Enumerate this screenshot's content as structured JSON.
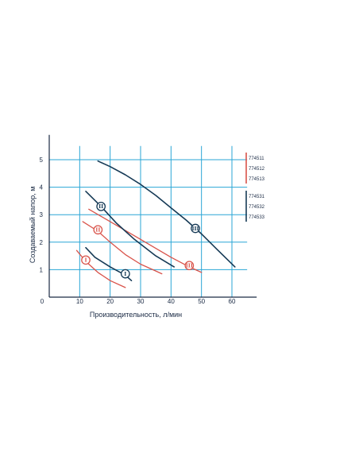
{
  "colors": {
    "grid": "#2aa6d6",
    "axis": "#1a2a44",
    "navy": "#163a56",
    "red": "#d9534a"
  },
  "chart_data": {
    "type": "line",
    "xlabel": "Производительность, л/мин",
    "ylabel": "Создаваемый напор, м",
    "xlim": [
      0,
      65
    ],
    "ylim": [
      0,
      5.5
    ],
    "x_ticks": [
      0,
      10,
      20,
      30,
      40,
      50,
      60
    ],
    "y_ticks": [
      1,
      2,
      3,
      4,
      5
    ],
    "x_tick_labels": [
      "0",
      "10",
      "20",
      "30",
      "40",
      "50",
      "60"
    ],
    "y_tick_labels": [
      "1",
      "2",
      "3",
      "4",
      "5"
    ],
    "grid": true,
    "legend_position": "right",
    "legend_groups": [
      {
        "color": "red",
        "items": [
          "774511",
          "774512",
          "774513"
        ]
      },
      {
        "color": "navy",
        "items": [
          "774531",
          "774532",
          "774533"
        ]
      }
    ],
    "series": [
      {
        "color": "red",
        "marker": "I",
        "marker_at": [
          12,
          1.35
        ],
        "points": [
          [
            9,
            1.7
          ],
          [
            12,
            1.3
          ],
          [
            16,
            0.9
          ],
          [
            20,
            0.6
          ],
          [
            25,
            0.35
          ]
        ]
      },
      {
        "color": "red",
        "marker": "II",
        "marker_at": [
          16,
          2.45
        ],
        "points": [
          [
            11,
            2.75
          ],
          [
            16,
            2.4
          ],
          [
            20,
            2.0
          ],
          [
            25,
            1.55
          ],
          [
            30,
            1.2
          ],
          [
            35,
            0.95
          ],
          [
            37,
            0.85
          ]
        ]
      },
      {
        "color": "red",
        "marker": "III",
        "marker_at": [
          46,
          1.15
        ],
        "points": [
          [
            13,
            3.2
          ],
          [
            20,
            2.75
          ],
          [
            30,
            2.1
          ],
          [
            40,
            1.45
          ],
          [
            46,
            1.1
          ],
          [
            50,
            0.9
          ]
        ]
      },
      {
        "color": "navy",
        "marker": "I",
        "marker_at": [
          25,
          0.85
        ],
        "points": [
          [
            12,
            1.8
          ],
          [
            15,
            1.45
          ],
          [
            20,
            1.1
          ],
          [
            25,
            0.8
          ],
          [
            27,
            0.6
          ]
        ]
      },
      {
        "color": "navy",
        "marker": "II",
        "marker_at": [
          17,
          3.3
        ],
        "points": [
          [
            12,
            3.85
          ],
          [
            17,
            3.3
          ],
          [
            22,
            2.7
          ],
          [
            28,
            2.1
          ],
          [
            35,
            1.5
          ],
          [
            41,
            1.1
          ]
        ]
      },
      {
        "color": "navy",
        "marker": "III",
        "marker_at": [
          48,
          2.5
        ],
        "points": [
          [
            16,
            4.95
          ],
          [
            20,
            4.75
          ],
          [
            25,
            4.45
          ],
          [
            30,
            4.1
          ],
          [
            35,
            3.7
          ],
          [
            40,
            3.25
          ],
          [
            45,
            2.8
          ],
          [
            50,
            2.3
          ],
          [
            55,
            1.75
          ],
          [
            61,
            1.1
          ]
        ]
      }
    ]
  }
}
